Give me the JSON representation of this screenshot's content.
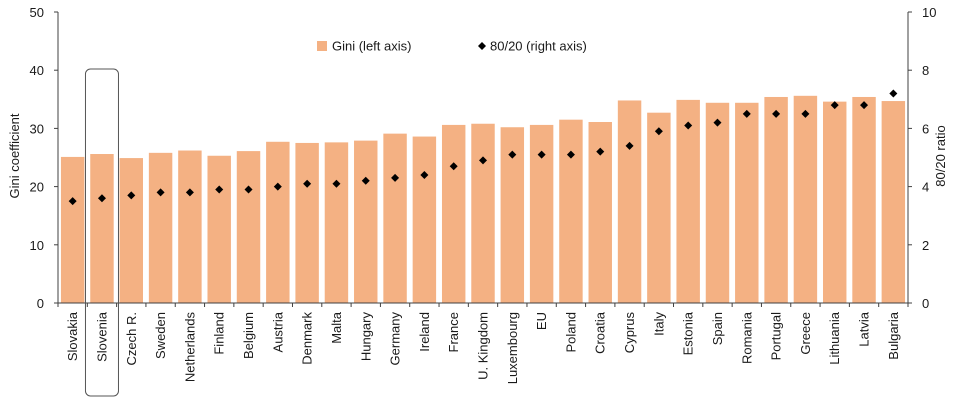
{
  "chart_data": {
    "type": "bar",
    "categories": [
      "Slovakia",
      "Slovenia",
      "Czech R.",
      "Sweden",
      "Netherlands",
      "Finland",
      "Belgium",
      "Austria",
      "Denmark",
      "Malta",
      "Hungary",
      "Germany",
      "Ireland",
      "France",
      "U. Kingdom",
      "Luxembourg",
      "EU",
      "Poland",
      "Croatia",
      "Cyprus",
      "Italy",
      "Estonia",
      "Spain",
      "Romania",
      "Portugal",
      "Greece",
      "Lithuania",
      "Latvia",
      "Bulgaria"
    ],
    "highlighted_category": "Slovenia",
    "series": [
      {
        "name": "Gini (left axis)",
        "type": "bar",
        "axis": "left",
        "color": "#f4b183",
        "values": [
          25.1,
          25.6,
          24.9,
          25.8,
          26.2,
          25.3,
          26.1,
          27.7,
          27.5,
          27.6,
          27.9,
          29.1,
          28.6,
          30.6,
          30.8,
          30.2,
          30.6,
          31.5,
          31.1,
          34.8,
          32.7,
          34.9,
          34.4,
          34.4,
          35.4,
          35.6,
          34.6,
          35.4,
          34.7
        ]
      },
      {
        "name": "80/20 (right axis)",
        "type": "scatter",
        "axis": "right",
        "marker": "diamond",
        "color": "#000000",
        "values": [
          3.5,
          3.6,
          3.7,
          3.8,
          3.8,
          3.9,
          3.9,
          4.0,
          4.1,
          4.1,
          4.2,
          4.3,
          4.4,
          4.7,
          4.9,
          5.1,
          5.1,
          5.1,
          5.2,
          5.4,
          5.9,
          6.1,
          6.2,
          6.5,
          6.5,
          6.5,
          6.8,
          6.8,
          7.2
        ]
      }
    ],
    "ylabel": "Gini coefficient",
    "y2label": "80/20 ratio",
    "ylim": [
      0,
      50
    ],
    "y2lim": [
      0,
      10
    ],
    "yticks": [
      "0",
      "10",
      "20",
      "30",
      "40",
      "50"
    ],
    "y2ticks": [
      "0",
      "2",
      "4",
      "6",
      "8",
      "10"
    ],
    "grid": false,
    "legend_position": "top-center"
  }
}
